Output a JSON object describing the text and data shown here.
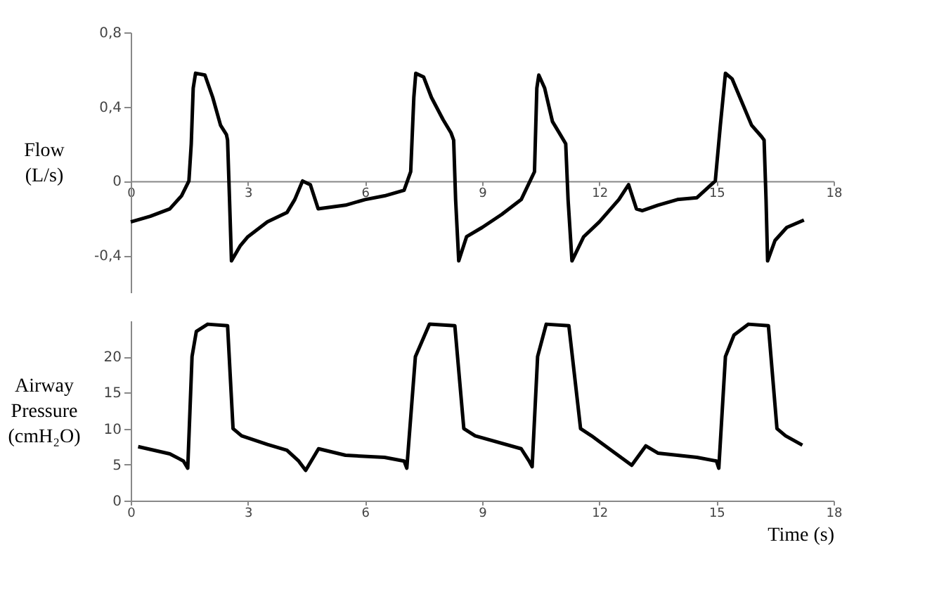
{
  "chart_data": [
    {
      "type": "line",
      "ylabel": "Flow\n(L/s)",
      "xlim": [
        0,
        18
      ],
      "xticks": [
        0,
        3,
        6,
        9,
        12,
        15,
        18
      ],
      "ylim": [
        -0.6,
        0.8
      ],
      "yticks": [
        {
          "value": -0.4,
          "label": "-0,4"
        },
        0,
        {
          "value": 0.4,
          "label": "0,4"
        },
        {
          "value": 0.8,
          "label": "0,8"
        }
      ],
      "grid": false,
      "marker": "none",
      "line_style": "solid",
      "series": [
        {
          "color": "#000000",
          "x": [
            0,
            0.5,
            1.0,
            1.3,
            1.49,
            1.55,
            1.6,
            1.66,
            1.9,
            2.1,
            2.3,
            2.45,
            2.48,
            2.53,
            2.58,
            2.8,
            3.0,
            3.5,
            4.0,
            4.2,
            4.4,
            4.6,
            4.8,
            5.5,
            6.0,
            6.5,
            7.0,
            7.17,
            7.25,
            7.3,
            7.5,
            7.7,
            8.0,
            8.2,
            8.27,
            8.32,
            8.4,
            8.6,
            9.0,
            9.5,
            10.0,
            10.34,
            10.4,
            10.45,
            10.6,
            10.8,
            11.0,
            11.14,
            11.2,
            11.3,
            11.6,
            12.0,
            12.5,
            12.75,
            12.95,
            13.1,
            13.5,
            14.0,
            14.5,
            14.97,
            15.1,
            15.23,
            15.4,
            15.6,
            15.9,
            16.15,
            16.22,
            16.27,
            16.31,
            16.5,
            16.8,
            17.24
          ],
          "values": [
            -0.22,
            -0.19,
            -0.15,
            -0.08,
            0.0,
            0.2,
            0.5,
            0.58,
            0.57,
            0.45,
            0.3,
            0.25,
            0.22,
            -0.1,
            -0.43,
            -0.35,
            -0.3,
            -0.22,
            -0.17,
            -0.1,
            0.0,
            -0.02,
            -0.15,
            -0.13,
            -0.1,
            -0.08,
            -0.05,
            0.05,
            0.45,
            0.58,
            0.56,
            0.45,
            0.33,
            0.26,
            0.22,
            -0.1,
            -0.43,
            -0.3,
            -0.25,
            -0.18,
            -0.1,
            0.05,
            0.5,
            0.57,
            0.5,
            0.32,
            0.25,
            0.2,
            -0.1,
            -0.43,
            -0.3,
            -0.22,
            -0.1,
            -0.02,
            -0.15,
            -0.16,
            -0.13,
            -0.1,
            -0.09,
            0.0,
            0.3,
            0.58,
            0.55,
            0.45,
            0.3,
            0.24,
            0.22,
            -0.1,
            -0.43,
            -0.32,
            -0.25,
            -0.21
          ]
        }
      ]
    },
    {
      "type": "line",
      "ylabel": "Airway\nPressure\n(cmH₂O)",
      "xlabel": "Time (s)",
      "xlim": [
        0,
        18
      ],
      "xticks": [
        0,
        3,
        6,
        9,
        12,
        15,
        18
      ],
      "ylim": [
        0,
        25
      ],
      "yticks": [
        0,
        5,
        10,
        15,
        20
      ],
      "grid": false,
      "marker": "none",
      "line_style": "solid",
      "series": [
        {
          "color": "#000000",
          "x": [
            0.19,
            1.0,
            1.35,
            1.46,
            1.57,
            1.68,
            1.97,
            2.48,
            2.62,
            2.84,
            3.5,
            4.0,
            4.3,
            4.48,
            4.81,
            5.5,
            6.5,
            7.0,
            7.07,
            7.29,
            7.65,
            8.3,
            8.53,
            8.82,
            10.0,
            10.2,
            10.28,
            10.42,
            10.64,
            11.22,
            11.52,
            11.8,
            12.0,
            12.83,
            13.19,
            13.5,
            14.5,
            15.0,
            15.06,
            15.23,
            15.45,
            15.82,
            16.33,
            16.55,
            16.77,
            17.2
          ],
          "values": [
            7.5,
            6.5,
            5.5,
            4.5,
            20,
            23.5,
            24.5,
            24.3,
            10,
            9,
            7.8,
            7,
            5.5,
            4.2,
            7.2,
            6.3,
            6.0,
            5.5,
            4.5,
            20,
            24.5,
            24.3,
            10,
            9,
            7.2,
            5.5,
            4.7,
            20,
            24.5,
            24.3,
            10,
            9,
            8.2,
            4.9,
            7.6,
            6.6,
            6.0,
            5.5,
            4.5,
            20,
            23,
            24.5,
            24.3,
            10,
            9,
            7.7
          ]
        }
      ]
    }
  ]
}
